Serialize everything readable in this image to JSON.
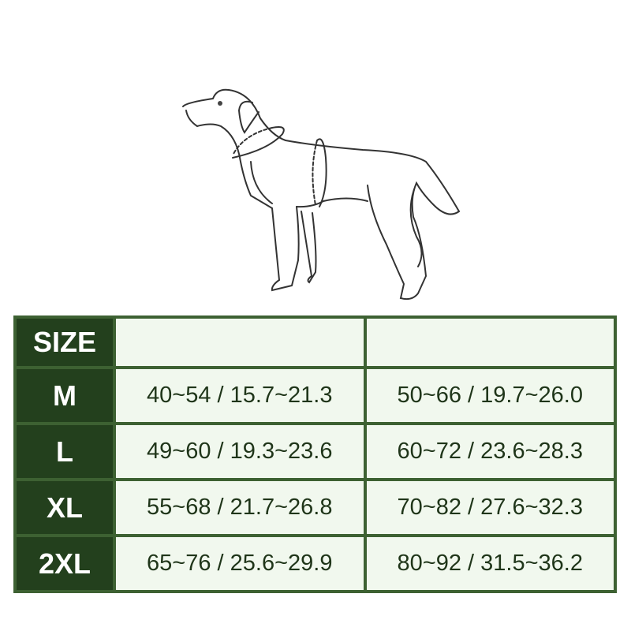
{
  "illustration": {
    "subject": "dog-outline",
    "colors": {
      "line": "#333333"
    }
  },
  "table": {
    "header": {
      "size": "SIZE",
      "col1": "",
      "col2": ""
    },
    "rows": [
      {
        "size": "M",
        "col1": "40~54 / 15.7~21.3",
        "col2": "50~66 / 19.7~26.0"
      },
      {
        "size": "L",
        "col1": "49~60 / 19.3~23.6",
        "col2": "60~72 / 23.6~28.3"
      },
      {
        "size": "XL",
        "col1": "55~68 / 21.7~26.8",
        "col2": "70~82 / 27.6~32.3"
      },
      {
        "size": "2XL",
        "col1": "65~76 / 25.6~29.9",
        "col2": "80~92 / 31.5~36.2"
      }
    ],
    "colors": {
      "size_bg": "#23401d",
      "border": "#3d6132",
      "cell_bg": "#f1f8ee",
      "text": "#1f3519"
    }
  }
}
